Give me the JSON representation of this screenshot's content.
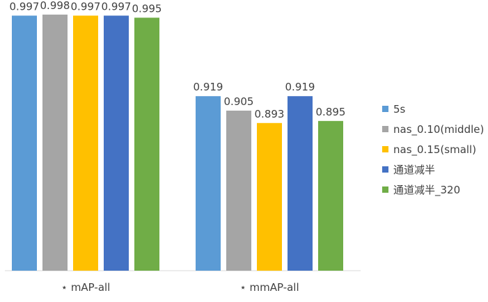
{
  "chart_data": {
    "type": "bar",
    "categories": [
      "⋆ mAP-all",
      "⋆ mmAP-all"
    ],
    "series": [
      {
        "name": "5s",
        "color": "#5B9BD5",
        "values": [
          0.997,
          0.919
        ]
      },
      {
        "name": "nas_0.10(middle)",
        "color": "#A5A5A5",
        "values": [
          0.998,
          0.905
        ]
      },
      {
        "name": "nas_0.15(small)",
        "color": "#FFC000",
        "values": [
          0.997,
          0.893
        ]
      },
      {
        "name": "通道减半",
        "color": "#4472C4",
        "values": [
          0.997,
          0.919
        ]
      },
      {
        "name": "通道减半_320",
        "color": "#70AD47",
        "values": [
          0.995,
          0.895
        ]
      }
    ],
    "ylim": [
      0.75,
      1.0
    ],
    "legend": "right",
    "grid": false
  }
}
